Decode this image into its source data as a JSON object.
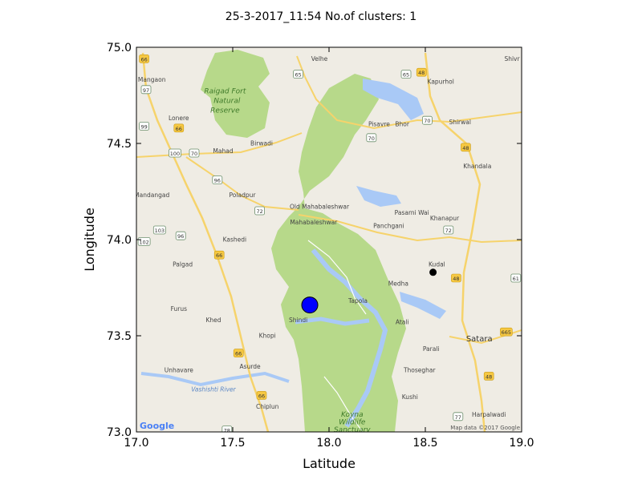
{
  "chart_data": {
    "type": "scatter",
    "title": "25-3-2017_11:54 No.of clusters: 1",
    "xlabel": "Latitude",
    "ylabel": "Longitude",
    "xlim": [
      17.0,
      19.0
    ],
    "ylim": [
      73.0,
      75.0
    ],
    "x_ticks": [
      "17.0",
      "17.5",
      "18.0",
      "18.5",
      "19.0"
    ],
    "y_ticks": [
      "73.0",
      "73.5",
      "74.0",
      "74.5",
      "75.0"
    ],
    "grid": false,
    "legend": "none",
    "series": [
      {
        "role": "cluster-center",
        "color": "#0000ff",
        "points": [
          [
            17.9,
            73.66
          ]
        ]
      },
      {
        "role": "data-point",
        "color": "#000000",
        "points": [
          [
            18.54,
            73.83
          ]
        ]
      }
    ]
  },
  "basemap": {
    "attribution": "Map data ©2017 Google",
    "logo": "Google",
    "labels": [
      {
        "text": "Velhe",
        "x": 17.95,
        "y": 74.93
      },
      {
        "text": "Shivr",
        "x": 18.95,
        "y": 74.93
      },
      {
        "text": "Mangaon",
        "x": 17.08,
        "y": 74.82
      },
      {
        "text": "Kapurhol",
        "x": 18.58,
        "y": 74.81
      },
      {
        "text": "Raigad Fort",
        "x": 17.46,
        "y": 74.76
      },
      {
        "text": "Natural",
        "x": 17.47,
        "y": 74.71
      },
      {
        "text": "Reserve",
        "x": 17.46,
        "y": 74.66
      },
      {
        "text": "Lonere",
        "x": 17.22,
        "y": 74.62
      },
      {
        "text": "Pisavre",
        "x": 18.26,
        "y": 74.59
      },
      {
        "text": "Bhor",
        "x": 18.38,
        "y": 74.59
      },
      {
        "text": "Shirwal",
        "x": 18.68,
        "y": 74.6
      },
      {
        "text": "Birwadi",
        "x": 17.65,
        "y": 74.49
      },
      {
        "text": "Mahad",
        "x": 17.45,
        "y": 74.45
      },
      {
        "text": "Khandala",
        "x": 18.77,
        "y": 74.37
      },
      {
        "text": "Mandangad",
        "x": 17.08,
        "y": 74.22
      },
      {
        "text": "Poladpur",
        "x": 17.55,
        "y": 74.22
      },
      {
        "text": "Old Mahabaleshwar",
        "x": 17.95,
        "y": 74.16
      },
      {
        "text": "Mahabaleshwar",
        "x": 17.92,
        "y": 74.08
      },
      {
        "text": "Pasarni Wai",
        "x": 18.43,
        "y": 74.13
      },
      {
        "text": "Khanapur",
        "x": 18.6,
        "y": 74.1
      },
      {
        "text": "Panchgani",
        "x": 18.31,
        "y": 74.06
      },
      {
        "text": "Kashedi",
        "x": 17.51,
        "y": 73.99
      },
      {
        "text": "Palgad",
        "x": 17.24,
        "y": 73.86
      },
      {
        "text": "Kudal",
        "x": 18.56,
        "y": 73.86
      },
      {
        "text": "Medha",
        "x": 18.36,
        "y": 73.76
      },
      {
        "text": "Tapola",
        "x": 18.15,
        "y": 73.67
      },
      {
        "text": "Furus",
        "x": 17.22,
        "y": 73.63
      },
      {
        "text": "Shindi",
        "x": 17.84,
        "y": 73.57
      },
      {
        "text": "Khed",
        "x": 17.4,
        "y": 73.57
      },
      {
        "text": "Atali",
        "x": 18.38,
        "y": 73.56
      },
      {
        "text": "Khopi",
        "x": 17.68,
        "y": 73.49
      },
      {
        "text": "Satara",
        "x": 18.78,
        "y": 73.47
      },
      {
        "text": "Parali",
        "x": 18.53,
        "y": 73.42
      },
      {
        "text": "Unhavare",
        "x": 17.22,
        "y": 73.31
      },
      {
        "text": "Asurde",
        "x": 17.59,
        "y": 73.33
      },
      {
        "text": "Thoseghar",
        "x": 18.47,
        "y": 73.31
      },
      {
        "text": "Vashishti River",
        "x": 17.4,
        "y": 73.21
      },
      {
        "text": "Kushi",
        "x": 18.42,
        "y": 73.17
      },
      {
        "text": "Chiplun",
        "x": 17.68,
        "y": 73.12
      },
      {
        "text": "Harpalwadi",
        "x": 18.83,
        "y": 73.08
      },
      {
        "text": "Koyna",
        "x": 18.12,
        "y": 73.08
      },
      {
        "text": "Wildlife",
        "x": 18.12,
        "y": 73.04
      },
      {
        "text": "Sanctuary",
        "x": 18.12,
        "y": 73.0
      }
    ],
    "shields": [
      {
        "text": "66",
        "x": 17.04,
        "y": 74.94,
        "type": "state"
      },
      {
        "text": "97",
        "x": 17.05,
        "y": 74.78,
        "type": "national"
      },
      {
        "text": "99",
        "x": 17.04,
        "y": 74.59,
        "type": "national"
      },
      {
        "text": "66",
        "x": 17.22,
        "y": 74.58,
        "type": "state"
      },
      {
        "text": "100",
        "x": 17.2,
        "y": 74.45,
        "type": "national"
      },
      {
        "text": "70",
        "x": 17.3,
        "y": 74.45,
        "type": "national"
      },
      {
        "text": "96",
        "x": 17.42,
        "y": 74.31,
        "type": "national"
      },
      {
        "text": "65",
        "x": 17.84,
        "y": 74.86,
        "type": "national"
      },
      {
        "text": "65",
        "x": 18.4,
        "y": 74.86,
        "type": "national"
      },
      {
        "text": "48",
        "x": 18.48,
        "y": 74.87,
        "type": "state"
      },
      {
        "text": "70",
        "x": 18.51,
        "y": 74.62,
        "type": "national"
      },
      {
        "text": "70",
        "x": 18.22,
        "y": 74.53,
        "type": "national"
      },
      {
        "text": "48",
        "x": 18.71,
        "y": 74.48,
        "type": "state"
      },
      {
        "text": "72",
        "x": 17.64,
        "y": 74.15,
        "type": "national"
      },
      {
        "text": "103",
        "x": 17.12,
        "y": 74.05,
        "type": "national"
      },
      {
        "text": "96",
        "x": 17.23,
        "y": 74.02,
        "type": "national"
      },
      {
        "text": "102",
        "x": 17.04,
        "y": 73.99,
        "type": "national"
      },
      {
        "text": "66",
        "x": 17.43,
        "y": 73.92,
        "type": "state"
      },
      {
        "text": "72",
        "x": 18.62,
        "y": 74.05,
        "type": "national"
      },
      {
        "text": "48",
        "x": 18.66,
        "y": 73.8,
        "type": "state"
      },
      {
        "text": "61",
        "x": 18.97,
        "y": 73.8,
        "type": "national"
      },
      {
        "text": "665",
        "x": 18.92,
        "y": 73.52,
        "type": "state"
      },
      {
        "text": "66",
        "x": 17.53,
        "y": 73.41,
        "type": "state"
      },
      {
        "text": "48",
        "x": 18.83,
        "y": 73.29,
        "type": "state"
      },
      {
        "text": "66",
        "x": 17.65,
        "y": 73.19,
        "type": "state"
      },
      {
        "text": "77",
        "x": 18.67,
        "y": 73.08,
        "type": "national"
      },
      {
        "text": "78",
        "x": 17.47,
        "y": 73.01,
        "type": "national"
      }
    ]
  }
}
